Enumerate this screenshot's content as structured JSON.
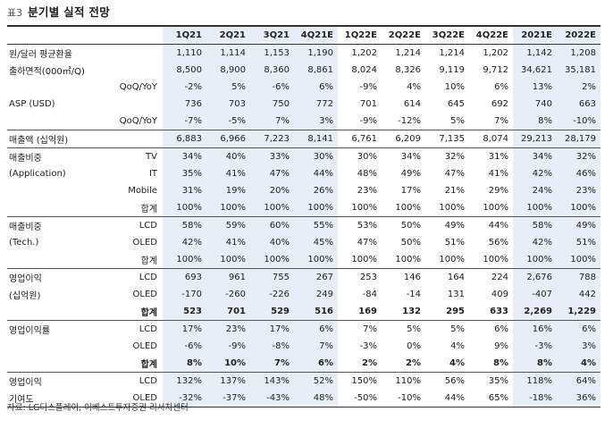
{
  "title": {
    "tag": "표3",
    "text": "분기별 실적 전망"
  },
  "columns": [
    "1Q21",
    "2Q21",
    "3Q21",
    "4Q21E",
    "1Q22E",
    "2Q22E",
    "3Q22E",
    "4Q22E",
    "2021E",
    "2022E"
  ],
  "rows": [
    {
      "l1": "원/달러 평균환율",
      "l2": "",
      "v": [
        "1,110",
        "1,114",
        "1,153",
        "1,190",
        "1,202",
        "1,214",
        "1,214",
        "1,202",
        "1,142",
        "1,208"
      ]
    },
    {
      "l1": "출하면적(000㎡/Q)",
      "l2": "",
      "v": [
        "8,500",
        "8,900",
        "8,360",
        "8,861",
        "8,024",
        "8,326",
        "9,119",
        "9,712",
        "34,621",
        "35,181"
      ]
    },
    {
      "l1": "",
      "l2": "QoQ/YoY",
      "v": [
        "-2%",
        "5%",
        "-6%",
        "6%",
        "-9%",
        "4%",
        "10%",
        "6%",
        "13%",
        "2%"
      ]
    },
    {
      "l1": "ASP (USD)",
      "l2": "",
      "v": [
        "736",
        "703",
        "750",
        "772",
        "701",
        "614",
        "645",
        "692",
        "740",
        "663"
      ]
    },
    {
      "l1": "",
      "l2": "QoQ/YoY",
      "v": [
        "-7%",
        "-5%",
        "7%",
        "3%",
        "-9%",
        "-12%",
        "5%",
        "7%",
        "8%",
        "-10%"
      ]
    },
    {
      "l1": "매출액 (십억원)",
      "l2": "",
      "sep": true,
      "v": [
        "6,883",
        "6,966",
        "7,223",
        "8,141",
        "6,761",
        "6,209",
        "7,135",
        "8,074",
        "29,213",
        "28,179"
      ]
    },
    {
      "l1": "매출비중",
      "l2": "TV",
      "sep": true,
      "v": [
        "34%",
        "40%",
        "33%",
        "30%",
        "30%",
        "34%",
        "32%",
        "31%",
        "34%",
        "32%"
      ]
    },
    {
      "l1": "(Application)",
      "l2": "IT",
      "v": [
        "35%",
        "41%",
        "47%",
        "44%",
        "48%",
        "49%",
        "47%",
        "41%",
        "42%",
        "46%"
      ]
    },
    {
      "l1": "",
      "l2": "Mobile",
      "v": [
        "31%",
        "19%",
        "20%",
        "26%",
        "23%",
        "17%",
        "21%",
        "29%",
        "24%",
        "23%"
      ]
    },
    {
      "l1": "",
      "l2": "합계",
      "v": [
        "100%",
        "100%",
        "100%",
        "100%",
        "100%",
        "100%",
        "100%",
        "100%",
        "100%",
        "100%"
      ]
    },
    {
      "l1": "매출비중",
      "l2": "LCD",
      "sep": true,
      "v": [
        "58%",
        "59%",
        "60%",
        "55%",
        "53%",
        "50%",
        "49%",
        "44%",
        "58%",
        "49%"
      ]
    },
    {
      "l1": "(Tech.)",
      "l2": "OLED",
      "v": [
        "42%",
        "41%",
        "40%",
        "45%",
        "47%",
        "50%",
        "51%",
        "56%",
        "42%",
        "51%"
      ]
    },
    {
      "l1": "",
      "l2": "합계",
      "v": [
        "100%",
        "100%",
        "100%",
        "100%",
        "100%",
        "100%",
        "100%",
        "100%",
        "100%",
        "100%"
      ]
    },
    {
      "l1": "영업이익",
      "l2": "LCD",
      "sep": true,
      "v": [
        "693",
        "961",
        "755",
        "267",
        "253",
        "146",
        "164",
        "224",
        "2,676",
        "788"
      ]
    },
    {
      "l1": "(십억원)",
      "l2": "OLED",
      "v": [
        "-170",
        "-260",
        "-226",
        "249",
        "-84",
        "-14",
        "131",
        "409",
        "-407",
        "442"
      ]
    },
    {
      "l1": "",
      "l2": "합계",
      "bold": true,
      "v": [
        "523",
        "701",
        "529",
        "516",
        "169",
        "132",
        "295",
        "633",
        "2,269",
        "1,229"
      ]
    },
    {
      "l1": "영업이익률",
      "l2": "LCD",
      "sep": true,
      "v": [
        "17%",
        "23%",
        "17%",
        "6%",
        "7%",
        "5%",
        "5%",
        "6%",
        "16%",
        "6%"
      ]
    },
    {
      "l1": "",
      "l2": "OLED",
      "v": [
        "-6%",
        "-9%",
        "-8%",
        "7%",
        "-3%",
        "0%",
        "4%",
        "9%",
        "-3%",
        "3%"
      ]
    },
    {
      "l1": "",
      "l2": "합계",
      "bold": true,
      "v": [
        "8%",
        "10%",
        "7%",
        "6%",
        "2%",
        "2%",
        "4%",
        "8%",
        "8%",
        "4%"
      ]
    },
    {
      "l1": "영업이익",
      "l2": "LCD",
      "sep": true,
      "v": [
        "132%",
        "137%",
        "143%",
        "52%",
        "150%",
        "110%",
        "56%",
        "35%",
        "118%",
        "64%"
      ]
    },
    {
      "l1": "기여도",
      "l2": "OLED",
      "last": true,
      "v": [
        "-32%",
        "-37%",
        "-43%",
        "48%",
        "-50%",
        "-10%",
        "44%",
        "65%",
        "-18%",
        "36%"
      ]
    }
  ],
  "source": "자료: LG디스플레이, 이베스트투자증권 리서치센터"
}
